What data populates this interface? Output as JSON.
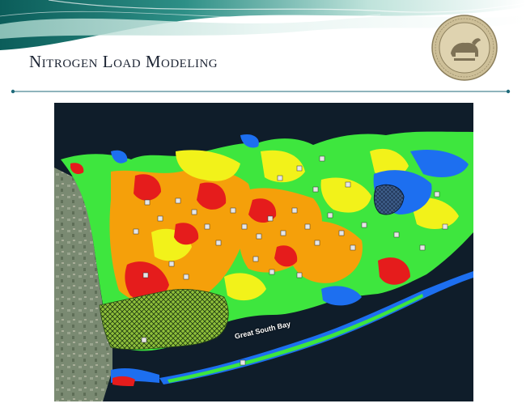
{
  "slide": {
    "title": "Nitrogen Load Modeling"
  },
  "map": {
    "bay_label": "Great South Bay",
    "colors": {
      "water": "#0f1d2a",
      "green": "#3ee63e",
      "yellow": "#f2f21a",
      "orange": "#f5a00a",
      "red": "#e51c1c",
      "blue": "#1d6ff0",
      "land_gray": "#7b8a74"
    }
  }
}
